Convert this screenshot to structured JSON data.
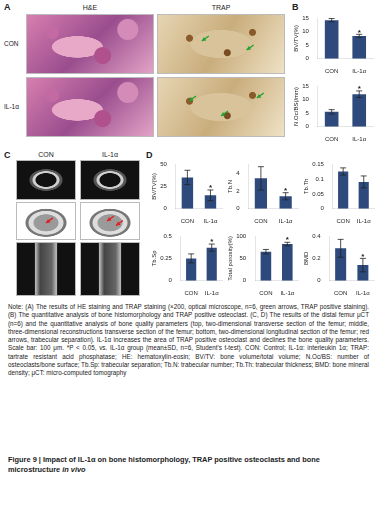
{
  "panel_labels": [
    "A",
    "B",
    "C",
    "D"
  ],
  "histology": {
    "columns": [
      "H&E",
      "TRAP"
    ],
    "rows": [
      "CON",
      "IL-1α"
    ]
  },
  "micro_ct": {
    "columns": [
      "CON",
      "IL-1α"
    ]
  },
  "chart_data": [
    {
      "type": "bar",
      "y_label": "BV/TV(%)",
      "categories": [
        "CON",
        "IL-1α"
      ],
      "values": [
        14.2,
        8.4
      ],
      "errors": [
        0.6,
        0.6
      ],
      "color": "#2e4a7d",
      "ylim": [
        0,
        15
      ],
      "yticks": [
        0,
        5,
        10,
        15
      ],
      "grid": false,
      "annotations": [
        {
          "category": "IL-1α",
          "text": "*"
        }
      ]
    },
    {
      "type": "bar",
      "y_label": "N.Oc/BS(/mm)",
      "categories": [
        "CON",
        "IL-1α"
      ],
      "values": [
        5.5,
        12.0
      ],
      "errors": [
        0.8,
        1.2
      ],
      "color": "#2e4a7d",
      "ylim": [
        0,
        15
      ],
      "yticks": [
        0,
        5,
        10,
        15
      ],
      "grid": false,
      "annotations": [
        {
          "category": "IL-1α",
          "text": "*"
        }
      ]
    },
    {
      "type": "bar",
      "y_label": "BV/TV(%)",
      "categories": [
        "CON",
        "IL-1α"
      ],
      "values": [
        35,
        15
      ],
      "errors": [
        8,
        6
      ],
      "color": "#2e4a7d",
      "ylim": [
        0,
        50
      ],
      "yticks": [
        0,
        25,
        50
      ],
      "grid": false,
      "annotations": [
        {
          "category": "IL-1α",
          "text": "*"
        }
      ]
    },
    {
      "type": "bar",
      "y_label": "Tb.N",
      "categories": [
        "CON",
        "IL-1α"
      ],
      "values": [
        3.4,
        1.4
      ],
      "errors": [
        1.3,
        0.4
      ],
      "color": "#2e4a7d",
      "ylim": [
        0,
        5
      ],
      "yticks": [
        0,
        2,
        4
      ],
      "grid": false,
      "annotations": [
        {
          "category": "IL-1α",
          "text": "*"
        }
      ]
    },
    {
      "type": "bar",
      "y_label": "Tb.Th",
      "categories": [
        "CON",
        "IL-1α"
      ],
      "values": [
        0.125,
        0.09
      ],
      "errors": [
        0.012,
        0.02
      ],
      "color": "#2e4a7d",
      "ylim": [
        0,
        0.15
      ],
      "yticks": [
        0,
        0.05,
        0.1,
        0.15
      ],
      "grid": false
    },
    {
      "type": "bar",
      "y_label": "Tb.Sp",
      "categories": [
        "CON",
        "IL-1α"
      ],
      "values": [
        0.25,
        0.37
      ],
      "errors": [
        0.05,
        0.04
      ],
      "color": "#2e4a7d",
      "ylim": [
        0,
        0.5
      ],
      "yticks": [
        0,
        0.25,
        0.5
      ],
      "grid": false,
      "annotations": [
        {
          "category": "IL-1α",
          "text": "*"
        }
      ]
    },
    {
      "type": "bar",
      "y_label": "Total porosity(%)",
      "categories": [
        "CON",
        "IL-1α"
      ],
      "values": [
        65,
        82
      ],
      "errors": [
        5,
        4
      ],
      "color": "#2e4a7d",
      "ylim": [
        0,
        100
      ],
      "yticks": [
        0,
        50,
        100
      ],
      "grid": false,
      "annotations": [
        {
          "category": "IL-1α",
          "text": "*"
        }
      ]
    },
    {
      "type": "bar",
      "y_label": "BMD",
      "categories": [
        "CON",
        "IL-1α"
      ],
      "values": [
        0.29,
        0.14
      ],
      "errors": [
        0.08,
        0.06
      ],
      "color": "#2e4a7d",
      "ylim": [
        0,
        0.4
      ],
      "yticks": [
        0,
        0.2,
        0.4
      ],
      "grid": false,
      "annotations": [
        {
          "category": "IL-1α",
          "text": "*"
        }
      ]
    }
  ],
  "note": "Note: (A) The results of HE staining and TRAP staining (×200, optical microscope, n=6, green arrows, TRAP positive staining). (B) The quantitative analysis of bone histomorphology and TRAP positive osteoclast. (C, D) The results of the distal femur μCT (n=6) and the quantitative analysis of bone quality parameters (top, two-dimensional transverse section of the femur; middle, three-dimensional reconstructions transverse section of the femur; bottom, two-dimensional longitudinal section of the femur; red arrows, trabecular separation). IL-1α increases the area of TRAP positive osteoclast and declines the bone quality parameters. Scale bar: 100 μm. *P < 0.05, vs. IL-1α group (mean±SD, n=6, Student's t-test). CON: Control; IL-1α: interleukin 1α; TRAP: tartrate resistant acid phosphatase; HE: hematoxylin-eosin; BV/TV: bone volume/total volume; N.Oc/BS: number of osteoclasts/bone surface; Tb.Sp: trabecular separation; Tb.N: trabecular number; Tb.Th: trabecular thickness; BMD: bone mineral density; μCT: micro-computed tomography",
  "caption": {
    "label": "Figure 9",
    "separator": "|",
    "title": "Impact of IL-1α on bone histomorphology, TRAP positive osteoclasts and bone microstructure",
    "title_italic": "in vivo"
  }
}
